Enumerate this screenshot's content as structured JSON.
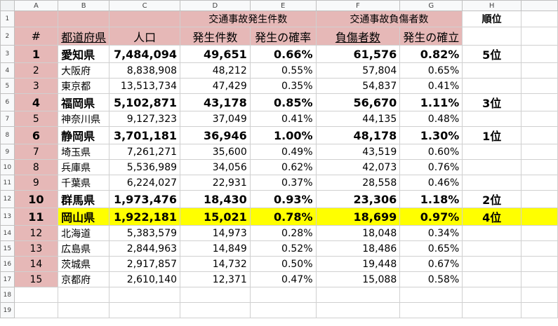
{
  "columns": [
    "A",
    "B",
    "C",
    "D",
    "E",
    "F",
    "G",
    "H"
  ],
  "header": {
    "group_accidents": "交通事故発生件数",
    "group_injured": "交通事故負傷者数",
    "rank": "順位",
    "num": "#",
    "prefecture": "都道府県",
    "population": "人口",
    "accidents": "発生件数",
    "accident_rate": "発生の確率",
    "injured": "負傷者数",
    "injury_rate": "発生の確立"
  },
  "row_numbers": [
    "1",
    "2",
    "3",
    "4",
    "5",
    "6",
    "7",
    "8",
    "9",
    "10",
    "11",
    "12",
    "13",
    "14",
    "15",
    "16",
    "17",
    "18",
    "19"
  ],
  "rows": [
    {
      "n": "1",
      "pref": "愛知県",
      "pop": "7,484,094",
      "acc": "49,651",
      "accr": "0.66%",
      "inj": "61,576",
      "injr": "0.82%",
      "rank": "5位",
      "style": "bold"
    },
    {
      "n": "2",
      "pref": "大阪府",
      "pop": "8,838,908",
      "acc": "48,212",
      "accr": "0.55%",
      "inj": "57,804",
      "injr": "0.65%",
      "rank": "",
      "style": ""
    },
    {
      "n": "3",
      "pref": "東京都",
      "pop": "13,513,734",
      "acc": "47,429",
      "accr": "0.35%",
      "inj": "54,837",
      "injr": "0.41%",
      "rank": "",
      "style": ""
    },
    {
      "n": "4",
      "pref": "福岡県",
      "pop": "5,102,871",
      "acc": "43,178",
      "accr": "0.85%",
      "inj": "56,670",
      "injr": "1.11%",
      "rank": "3位",
      "style": "bold"
    },
    {
      "n": "5",
      "pref": "神奈川県",
      "pop": "9,127,323",
      "acc": "37,049",
      "accr": "0.41%",
      "inj": "44,135",
      "injr": "0.48%",
      "rank": "",
      "style": ""
    },
    {
      "n": "6",
      "pref": "静岡県",
      "pop": "3,701,181",
      "acc": "36,946",
      "accr": "1.00%",
      "inj": "48,178",
      "injr": "1.30%",
      "rank": "1位",
      "style": "bold"
    },
    {
      "n": "7",
      "pref": "埼玉県",
      "pop": "7,261,271",
      "acc": "35,600",
      "accr": "0.49%",
      "inj": "43,519",
      "injr": "0.60%",
      "rank": "",
      "style": ""
    },
    {
      "n": "8",
      "pref": "兵庫県",
      "pop": "5,536,989",
      "acc": "34,056",
      "accr": "0.62%",
      "inj": "42,073",
      "injr": "0.76%",
      "rank": "",
      "style": ""
    },
    {
      "n": "9",
      "pref": "千葉県",
      "pop": "6,224,027",
      "acc": "22,931",
      "accr": "0.37%",
      "inj": "28,558",
      "injr": "0.46%",
      "rank": "",
      "style": ""
    },
    {
      "n": "10",
      "pref": "群馬県",
      "pop": "1,973,476",
      "acc": "18,430",
      "accr": "0.93%",
      "inj": "23,306",
      "injr": "1.18%",
      "rank": "2位",
      "style": "bold"
    },
    {
      "n": "11",
      "pref": "岡山県",
      "pop": "1,922,181",
      "acc": "15,021",
      "accr": "0.78%",
      "inj": "18,699",
      "injr": "0.97%",
      "rank": "4位",
      "style": "highlight"
    },
    {
      "n": "12",
      "pref": "北海道",
      "pop": "5,383,579",
      "acc": "14,973",
      "accr": "0.28%",
      "inj": "18,048",
      "injr": "0.34%",
      "rank": "",
      "style": ""
    },
    {
      "n": "13",
      "pref": "広島県",
      "pop": "2,844,963",
      "acc": "14,849",
      "accr": "0.52%",
      "inj": "18,486",
      "injr": "0.65%",
      "rank": "",
      "style": ""
    },
    {
      "n": "14",
      "pref": "茨城県",
      "pop": "2,917,857",
      "acc": "14,732",
      "accr": "0.50%",
      "inj": "19,448",
      "injr": "0.67%",
      "rank": "",
      "style": ""
    },
    {
      "n": "15",
      "pref": "京都府",
      "pop": "2,610,140",
      "acc": "12,371",
      "accr": "0.47%",
      "inj": "15,088",
      "injr": "0.58%",
      "rank": "",
      "style": ""
    }
  ]
}
